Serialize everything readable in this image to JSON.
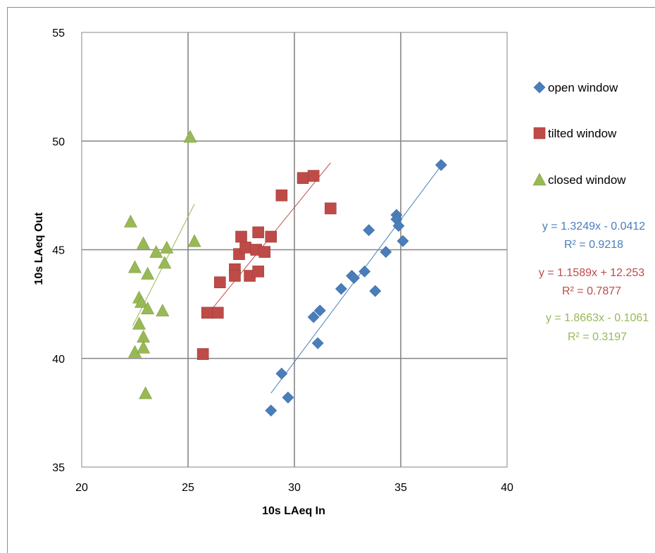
{
  "chart_data": {
    "type": "scatter",
    "xlabel": "10s LAeq In",
    "ylabel": "10s LAeq Out",
    "xlim": [
      20,
      40
    ],
    "ylim": [
      35,
      55
    ],
    "x_ticks": [
      "20",
      "25",
      "30",
      "35",
      "40"
    ],
    "y_ticks": [
      "35",
      "40",
      "45",
      "50",
      "55"
    ],
    "grid": true,
    "legend_position": "right",
    "series": [
      {
        "name": "open window",
        "marker": "diamond",
        "color": "#4a7ebb",
        "points": [
          [
            28.9,
            37.6
          ],
          [
            29.7,
            38.2
          ],
          [
            29.4,
            39.3
          ],
          [
            31.1,
            40.7
          ],
          [
            30.9,
            41.9
          ],
          [
            31.2,
            42.2
          ],
          [
            32.2,
            43.2
          ],
          [
            32.7,
            43.8
          ],
          [
            32.8,
            43.7
          ],
          [
            33.3,
            44.0
          ],
          [
            33.8,
            43.1
          ],
          [
            34.3,
            44.9
          ],
          [
            33.5,
            45.9
          ],
          [
            35.1,
            45.4
          ],
          [
            34.8,
            46.6
          ],
          [
            34.8,
            46.4
          ],
          [
            34.9,
            46.1
          ],
          [
            36.9,
            48.9
          ]
        ],
        "trend": {
          "x": [
            28.9,
            37.0
          ],
          "y": [
            38.4,
            49.0
          ],
          "equation": "y = 1.3249x - 0.0412",
          "r2": "R² = 0.9218"
        }
      },
      {
        "name": "tilted window",
        "marker": "square",
        "color": "#be4b48",
        "points": [
          [
            25.7,
            40.2
          ],
          [
            25.9,
            42.1
          ],
          [
            26.4,
            42.1
          ],
          [
            26.5,
            43.5
          ],
          [
            27.2,
            44.1
          ],
          [
            27.2,
            43.8
          ],
          [
            27.4,
            44.8
          ],
          [
            27.5,
            45.6
          ],
          [
            27.7,
            45.1
          ],
          [
            27.9,
            43.8
          ],
          [
            28.2,
            45.0
          ],
          [
            28.3,
            45.8
          ],
          [
            28.3,
            44.0
          ],
          [
            28.6,
            44.9
          ],
          [
            28.9,
            45.6
          ],
          [
            29.4,
            47.5
          ],
          [
            30.4,
            48.3
          ],
          [
            30.9,
            48.4
          ],
          [
            31.7,
            46.9
          ]
        ],
        "trend": {
          "x": [
            25.9,
            31.7
          ],
          "y": [
            42.0,
            49.0
          ],
          "equation": "y = 1.1589x + 12.253",
          "r2": "R² = 0.7877"
        }
      },
      {
        "name": "closed window",
        "marker": "triangle",
        "color": "#98b954",
        "points": [
          [
            22.3,
            46.3
          ],
          [
            22.5,
            40.3
          ],
          [
            22.5,
            44.2
          ],
          [
            22.7,
            41.6
          ],
          [
            22.7,
            42.8
          ],
          [
            22.8,
            42.6
          ],
          [
            22.9,
            45.3
          ],
          [
            22.9,
            41.0
          ],
          [
            22.9,
            40.5
          ],
          [
            23.0,
            38.4
          ],
          [
            23.1,
            43.9
          ],
          [
            23.1,
            42.3
          ],
          [
            23.5,
            44.9
          ],
          [
            23.8,
            42.2
          ],
          [
            23.9,
            44.4
          ],
          [
            24.0,
            45.1
          ],
          [
            25.1,
            50.2
          ],
          [
            25.3,
            45.4
          ]
        ],
        "trend": {
          "x": [
            22.4,
            25.3
          ],
          "y": [
            41.5,
            47.1
          ],
          "equation": "y = 1.8663x - 0.1061",
          "r2": "R² = 0.3197"
        }
      }
    ]
  }
}
